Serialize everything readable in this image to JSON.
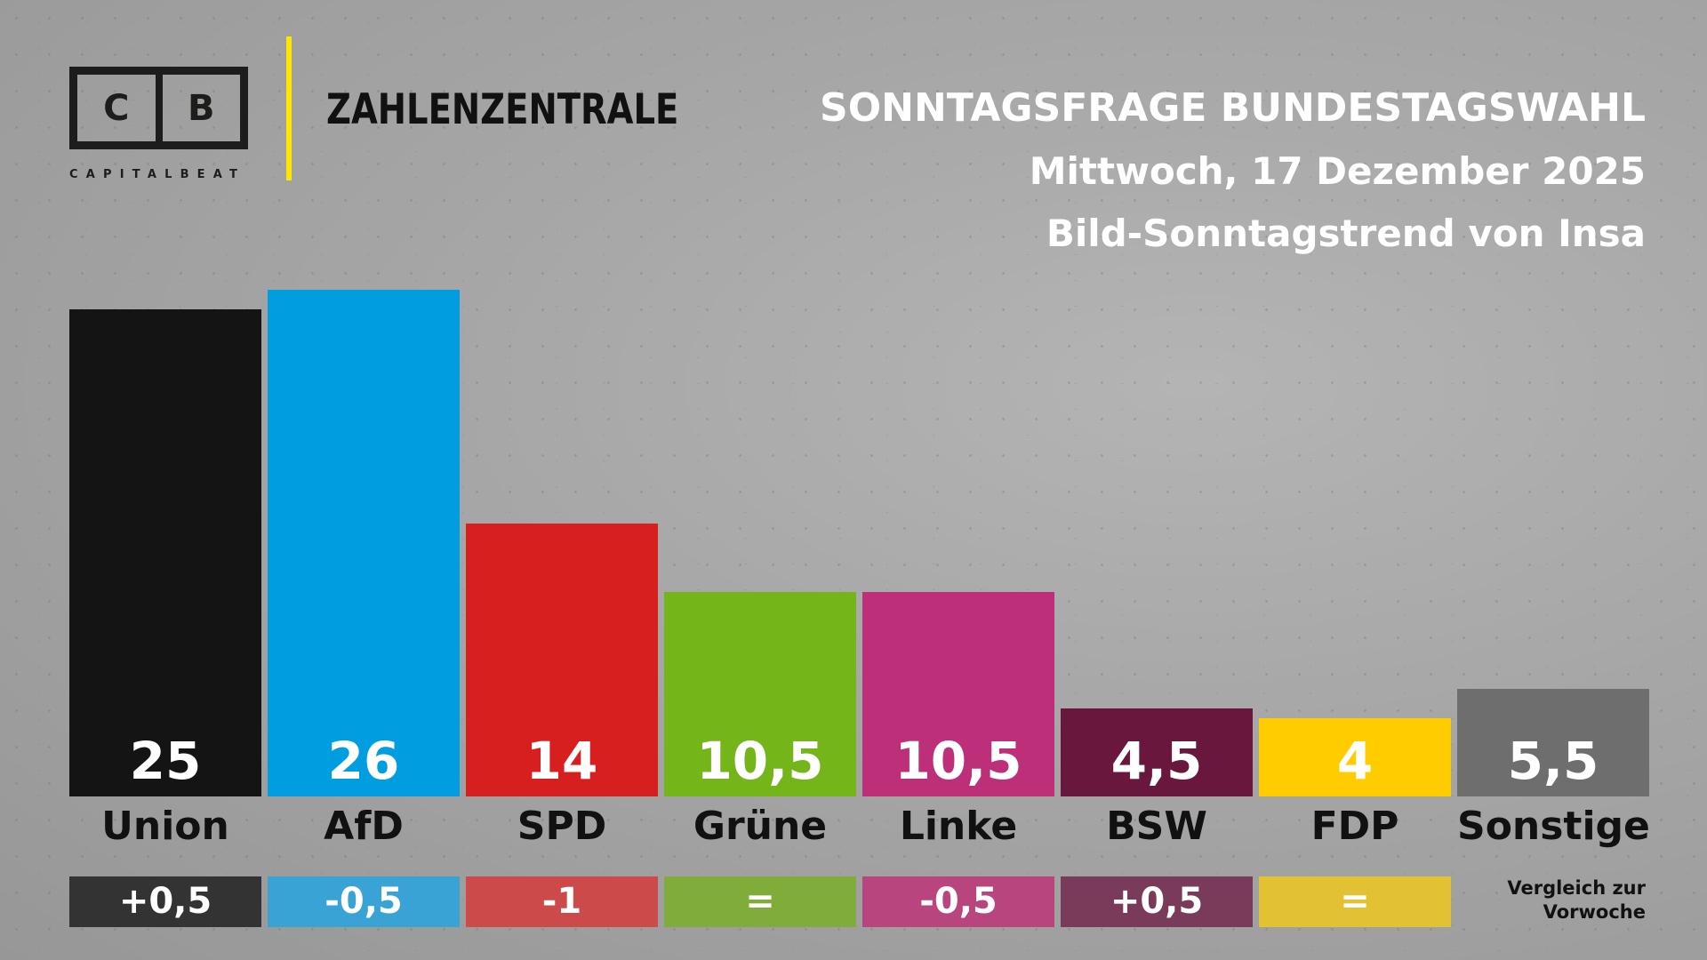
{
  "logo": {
    "left": "C",
    "right": "B",
    "word": "CAPITALBEAT"
  },
  "section": "ZAHLENZENTRALE",
  "header": {
    "title": "SONNTAGSFRAGE BUNDESTAGSWAHL",
    "date": "Mittwoch, 17 Dezember 2025",
    "source": "Bild-Sonntagstrend von Insa"
  },
  "note": {
    "line1": "Vergleich zur",
    "line2": "Vorwoche"
  },
  "chart_data": {
    "type": "bar",
    "title": "SONNTAGSFRAGE BUNDESTAGSWAHL",
    "categories": [
      "Union",
      "AfD",
      "SPD",
      "Grüne",
      "Linke",
      "BSW",
      "FDP",
      "Sonstige"
    ],
    "values": [
      25,
      26,
      14,
      10.5,
      10.5,
      4.5,
      4,
      5.5
    ],
    "labels": [
      "25",
      "26",
      "14",
      "10,5",
      "10,5",
      "4,5",
      "4",
      "5,5"
    ],
    "changes": [
      "+0,5",
      "-0,5",
      "-1",
      "=",
      "-0,5",
      "+0,5",
      "=",
      ""
    ],
    "colors": [
      "#141414",
      "#009ee0",
      "#d71f1f",
      "#74b51a",
      "#bd2f78",
      "#6a173e",
      "#ffcc00",
      "#6e6e6e"
    ],
    "change_colors": [
      "#333333",
      "#3aa3d6",
      "#cc4a4a",
      "#80ac3a",
      "#b9457f",
      "#7a3a5a",
      "#e2c232",
      ""
    ],
    "value_text_colors": [
      "#ffffff",
      "#ffffff",
      "#ffffff",
      "#ffffff",
      "#ffffff",
      "#ffffff",
      "#ffffff",
      "#ffffff"
    ],
    "ylim": [
      0,
      26
    ]
  }
}
